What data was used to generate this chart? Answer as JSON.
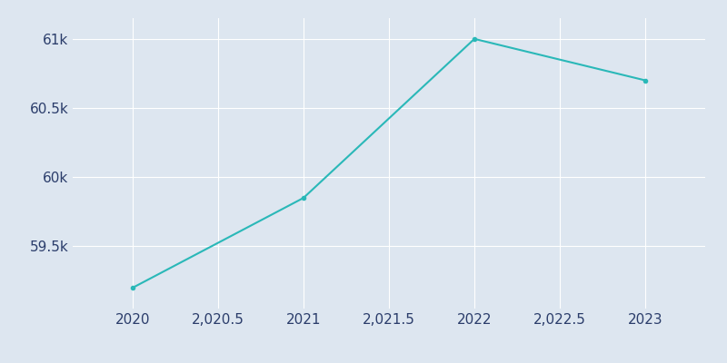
{
  "x": [
    2020,
    2021,
    2022,
    2023
  ],
  "y": [
    59200,
    59850,
    61000,
    60700
  ],
  "line_color": "#2ab8b8",
  "marker": "o",
  "marker_size": 3,
  "background_color": "#dde6f0",
  "grid_color": "#c8d4e3",
  "ylim": [
    59050,
    61150
  ],
  "xlim": [
    2019.65,
    2023.35
  ],
  "tick_label_color": "#2b3d6b",
  "tick_fontsize": 11
}
